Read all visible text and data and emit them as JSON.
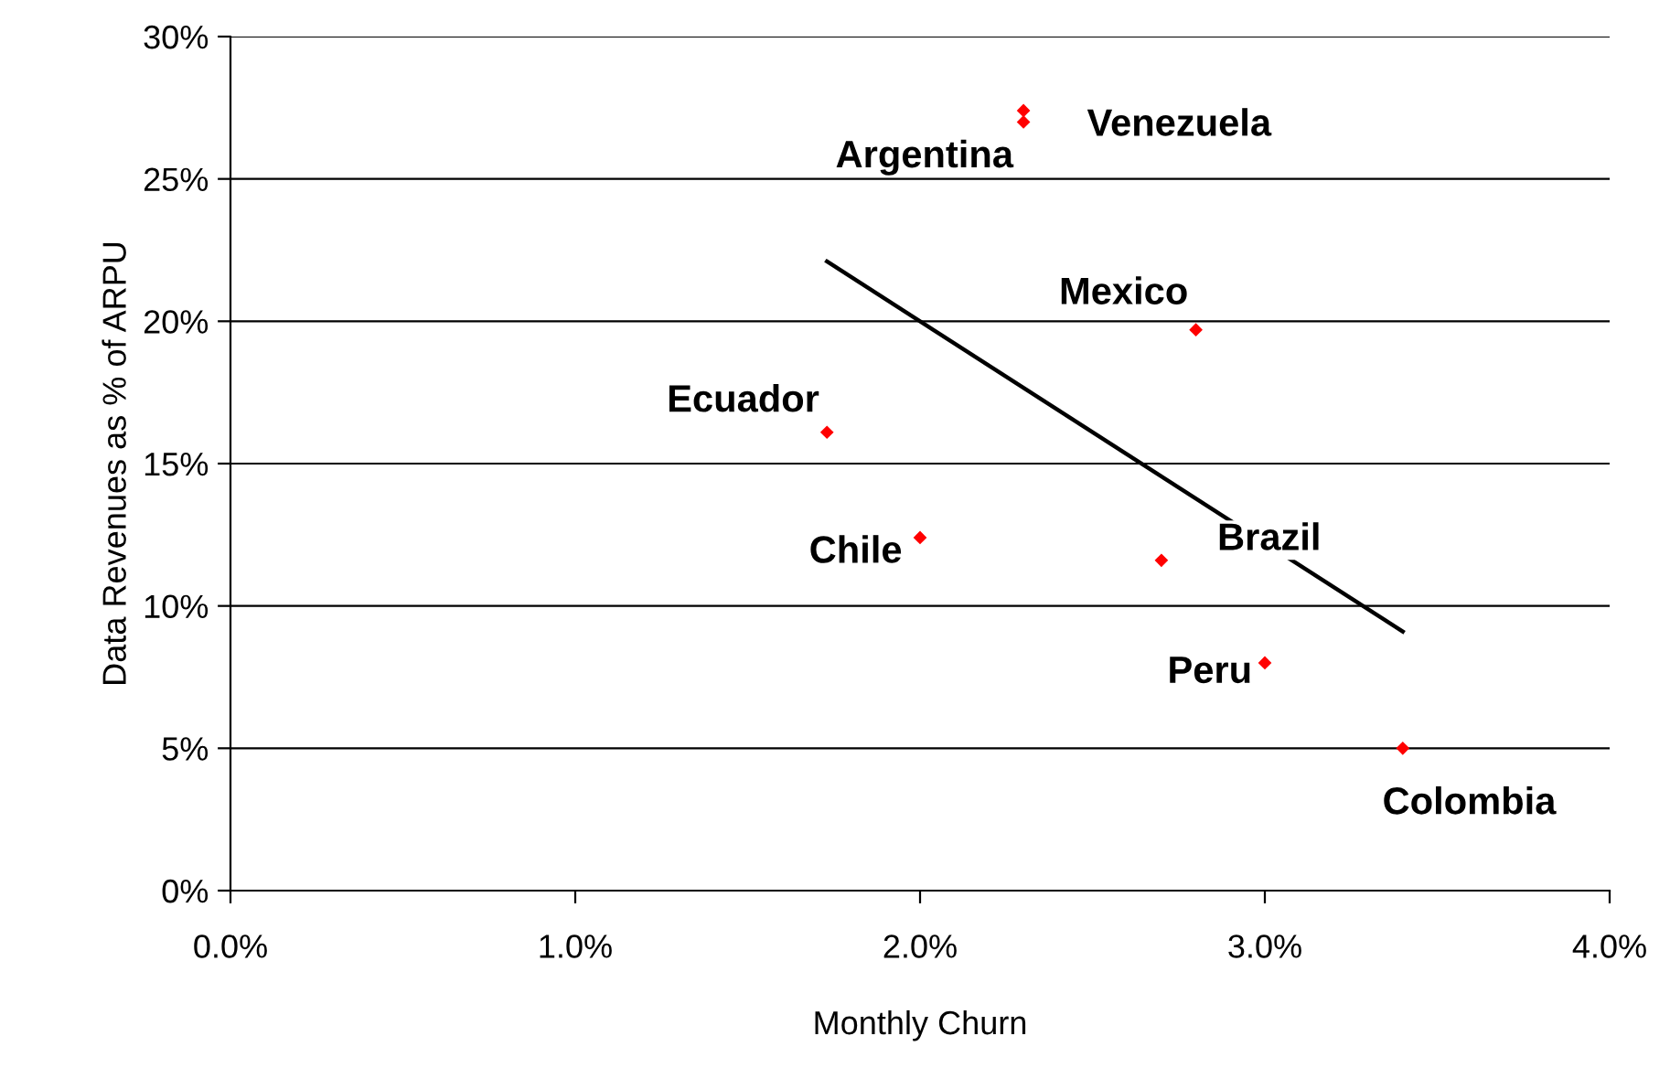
{
  "chart_data": {
    "type": "scatter",
    "xlabel": "Monthly Churn",
    "ylabel": "Data Revenues as % of ARPU",
    "xlim": [
      0,
      4
    ],
    "xticks": [
      {
        "value": 0,
        "label": "0.0%"
      },
      {
        "value": 1,
        "label": "1.0%"
      },
      {
        "value": 2,
        "label": "2.0%"
      },
      {
        "value": 3,
        "label": "3.0%"
      },
      {
        "value": 4,
        "label": "4.0%"
      }
    ],
    "ylim": [
      0,
      30
    ],
    "yticks": [
      {
        "value": 0,
        "label": "0%"
      },
      {
        "value": 5,
        "label": "5%"
      },
      {
        "value": 10,
        "label": "10%"
      },
      {
        "value": 15,
        "label": "15%"
      },
      {
        "value": 20,
        "label": "20%"
      },
      {
        "value": 25,
        "label": "25%"
      },
      {
        "value": 30,
        "label": "30%"
      }
    ],
    "grid": "y",
    "series": [
      {
        "name": "Venezuela",
        "marker": "diamond",
        "color": "#ff0000",
        "x": [
          2.3
        ],
        "values": [
          27.4
        ]
      },
      {
        "name": "Argentina",
        "marker": "diamond",
        "color": "#ff0000",
        "x": [
          2.3
        ],
        "values": [
          27.0
        ]
      },
      {
        "name": "Mexico",
        "marker": "diamond",
        "color": "#ff0000",
        "x": [
          2.8
        ],
        "values": [
          19.7
        ]
      },
      {
        "name": "Ecuador",
        "marker": "diamond",
        "color": "#ff0000",
        "x": [
          1.73
        ],
        "values": [
          16.1
        ]
      },
      {
        "name": "Chile",
        "marker": "diamond",
        "color": "#ff0000",
        "x": [
          2.0
        ],
        "values": [
          12.4
        ]
      },
      {
        "name": "Brazil",
        "marker": "diamond",
        "color": "#ff0000",
        "x": [
          2.7
        ],
        "values": [
          11.6
        ]
      },
      {
        "name": "Peru",
        "marker": "diamond",
        "color": "#ff0000",
        "x": [
          3.0
        ],
        "values": [
          8.0
        ]
      },
      {
        "name": "Colombia",
        "marker": "diamond",
        "color": "#ff0000",
        "x": [
          3.4
        ],
        "values": [
          5.0
        ]
      },
      {
        "type": "line",
        "color": "#000000",
        "x": [
          1.73,
          3.4
        ],
        "values": [
          22.1,
          9.1
        ]
      }
    ]
  }
}
